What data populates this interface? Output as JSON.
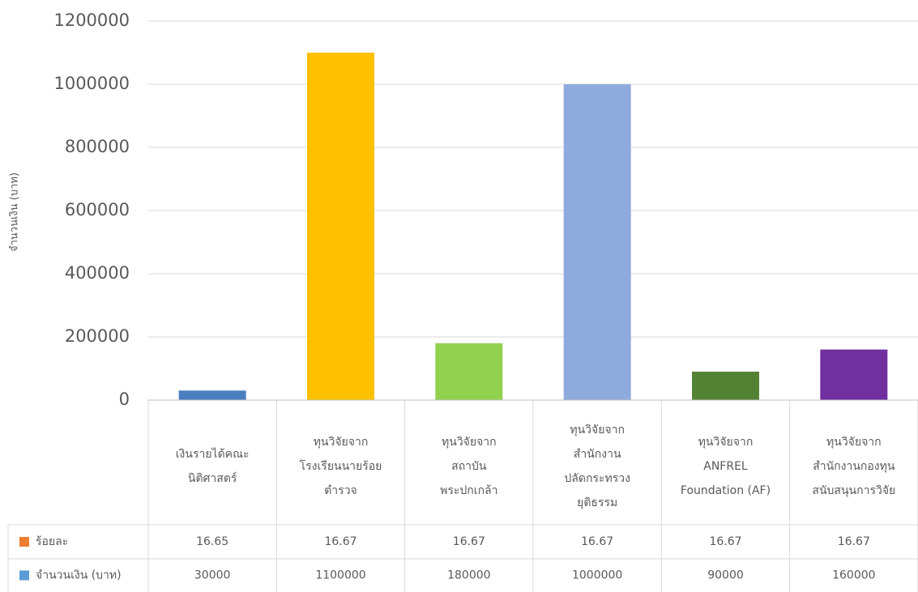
{
  "chart_data": {
    "type": "stacked_bar",
    "y_axis_label": "จำนวนเงิน (บาท)",
    "categories": [
      [
        "เงินรายได้คณะ",
        "นิติศาสตร์"
      ],
      [
        "ทุนวิจัยจาก",
        "โรงเรียนนายร้อย",
        "ตำรวจ"
      ],
      [
        "ทุนวิจัยจาก",
        "สถาบัน",
        "พระปกเกล้า"
      ],
      [
        "ทุนวิจัยจาก",
        "สำนักงาน",
        "ปลัดกระทรวง",
        "ยุติธรรม"
      ],
      [
        "ทุนวิจัยจาก",
        "ANFREL",
        "Foundation (AF)"
      ],
      [
        "ทุนวิจัยจาก",
        "สำนักงานกองทุน",
        "สนับสนุนการวิจัย"
      ]
    ],
    "series": [
      {
        "name": "ร้อยละ",
        "color": "#ed7d31",
        "values": [
          16.65,
          16.67,
          16.67,
          16.67,
          16.67,
          16.67
        ]
      },
      {
        "name": "จำนวนเงิน (บาท)",
        "color": "#5b9bd5",
        "values": [
          30000,
          1100000,
          180000,
          1000000,
          90000,
          160000
        ],
        "point_colors": [
          "#4a7ebf",
          "#ffc000",
          "#92d050",
          "#8faadc",
          "#548235",
          "#7030a0"
        ]
      }
    ],
    "stack_order": [
      1,
      0
    ],
    "ylim": [
      0,
      1200000
    ],
    "yticks": [
      0,
      200000,
      400000,
      600000,
      800000,
      1000000,
      1200000
    ],
    "grid": true
  }
}
